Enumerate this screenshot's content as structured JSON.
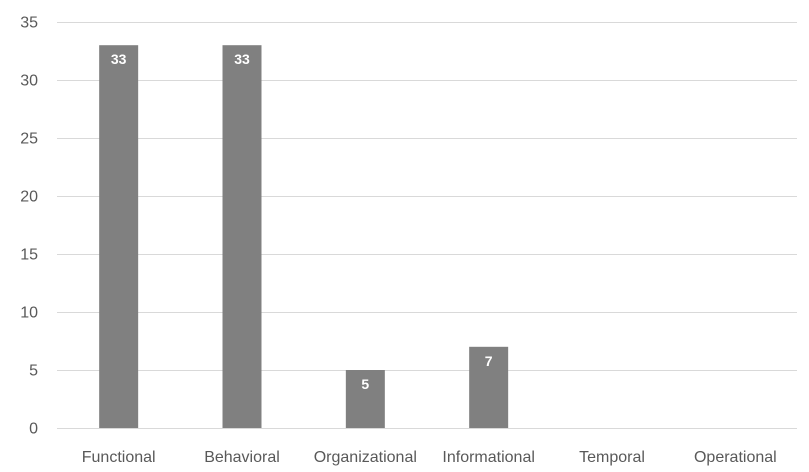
{
  "chart_data": {
    "type": "bar",
    "title": "",
    "xlabel": "",
    "ylabel": "",
    "categories": [
      "Functional",
      "Behavioral",
      "Organizational",
      "Informational",
      "Temporal",
      "Operational"
    ],
    "values": [
      33,
      33,
      5,
      7,
      0,
      0
    ],
    "data_labels": [
      "33",
      "33",
      "5",
      "7",
      "",
      ""
    ],
    "ylim": [
      0,
      35
    ],
    "yticks": [
      0,
      5,
      10,
      15,
      20,
      25,
      30,
      35
    ],
    "grid": true,
    "legend": "none",
    "colors": {
      "bar": "#808080",
      "gridline": "#d9d9d9",
      "tick_text": "#595959",
      "data_label": "#ffffff"
    }
  }
}
